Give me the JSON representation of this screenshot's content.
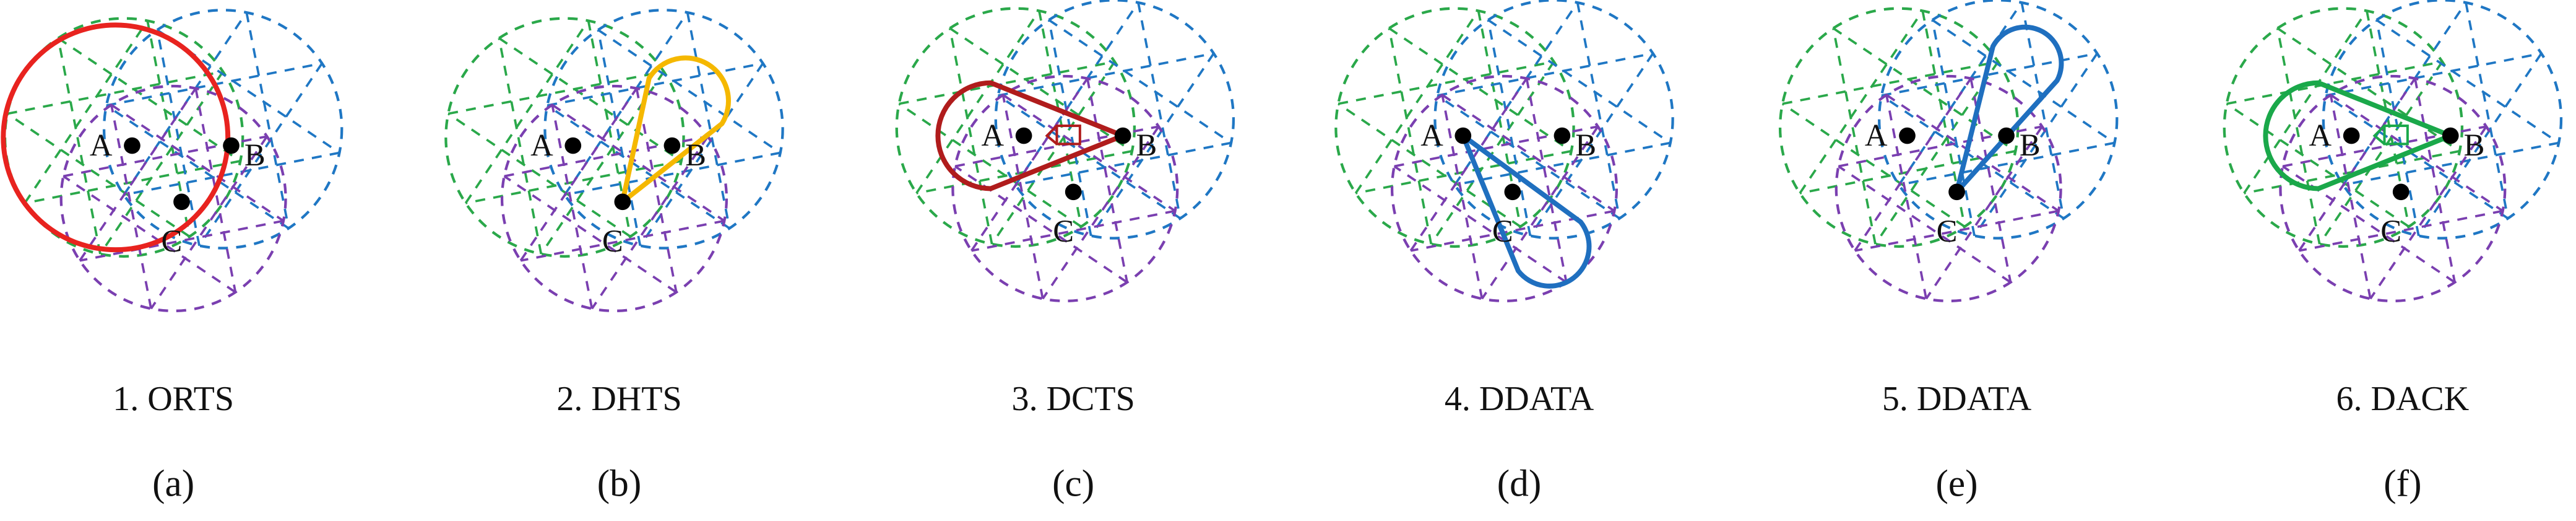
{
  "panels": [
    {
      "step": "1. ORTS",
      "caption": "(a)",
      "nodes": [
        "A",
        "B",
        "C"
      ]
    },
    {
      "step": "2. DHTS",
      "caption": "(b)",
      "nodes": [
        "A",
        "B",
        "C"
      ]
    },
    {
      "step": "3. DCTS",
      "caption": "(c)",
      "nodes": [
        "A",
        "B",
        "C"
      ]
    },
    {
      "step": "4. DDATA",
      "caption": "(d)",
      "nodes": [
        "A",
        "B",
        "C"
      ]
    },
    {
      "step": "5. DDATA",
      "caption": "(e)",
      "nodes": [
        "A",
        "B",
        "C"
      ]
    },
    {
      "step": "6. DACK",
      "caption": "(f)",
      "nodes": [
        "A",
        "B",
        "C"
      ]
    }
  ]
}
